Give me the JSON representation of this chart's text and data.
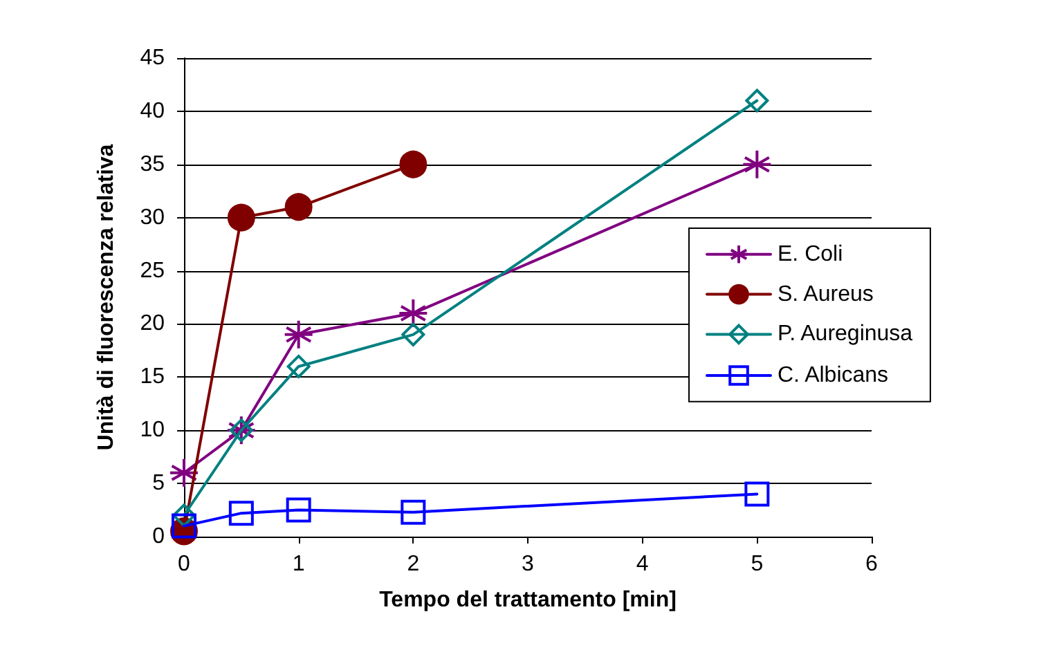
{
  "chart_data": {
    "type": "line",
    "xlabel": "Tempo del trattamento [min]",
    "ylabel": "Unità di fluorescenza relativa",
    "xlim": [
      0,
      6
    ],
    "xticks": [
      0,
      1,
      2,
      3,
      4,
      5,
      6
    ],
    "ylim": [
      0,
      45
    ],
    "yticks": [
      0,
      5,
      10,
      15,
      20,
      25,
      30,
      35,
      40,
      45
    ],
    "grid": "y",
    "legend": "right",
    "line_style": "solid",
    "series": [
      {
        "name": "E. Coli",
        "color": "#800080",
        "marker": "cross",
        "x": [
          0,
          0.5,
          1,
          2,
          5
        ],
        "values": [
          6,
          10,
          19,
          21,
          35
        ]
      },
      {
        "name": "S. Aureus",
        "color": "#800000",
        "marker": "circle",
        "x": [
          0,
          0.5,
          1,
          2
        ],
        "values": [
          0.5,
          30,
          31,
          35
        ]
      },
      {
        "name": "P. Aureginusa",
        "color": "#008080",
        "marker": "diamond",
        "x": [
          0,
          0.5,
          1,
          2,
          5
        ],
        "values": [
          2,
          10,
          16,
          19,
          41
        ]
      },
      {
        "name": "C. Albicans",
        "color": "#0000ff",
        "marker": "square",
        "x": [
          0,
          0.5,
          1,
          2,
          5
        ],
        "values": [
          1,
          2.2,
          2.5,
          2.3,
          4
        ]
      }
    ]
  }
}
